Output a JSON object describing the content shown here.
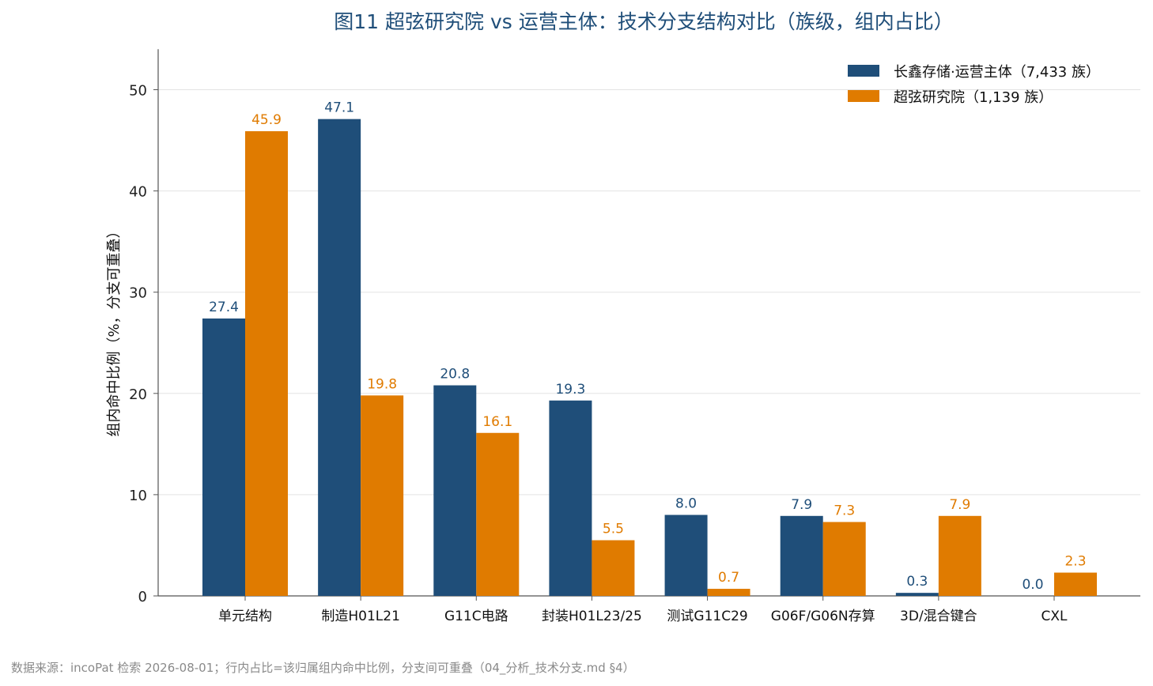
{
  "chart_data": {
    "type": "bar",
    "title": "图11  超弦研究院 vs 运营主体：技术分支结构对比（族级，组内占比）",
    "ylabel": "组内命中比例（%，分支可重叠）",
    "xlabel": "",
    "ylim": [
      0,
      54
    ],
    "yticks": [
      0,
      10,
      20,
      30,
      40,
      50
    ],
    "grid": true,
    "legend_position": "top-right",
    "categories": [
      "单元结构",
      "制造H01L21",
      "G11C电路",
      "封装H01L23/25",
      "测试G11C29",
      "G06F/G06N存算",
      "3D/混合键合",
      "CXL"
    ],
    "series": [
      {
        "name": "长鑫存储·运营主体（7,433 族）",
        "color": "#1f4e79",
        "values": [
          27.4,
          47.1,
          20.8,
          19.3,
          8.0,
          7.9,
          0.3,
          0.0
        ],
        "labels": [
          "27.4",
          "47.1",
          "20.8",
          "19.3",
          "8.0",
          "7.9",
          "0.3",
          "0.0"
        ]
      },
      {
        "name": "超弦研究院（1,139 族）",
        "color": "#e07b00",
        "values": [
          45.9,
          19.8,
          16.1,
          5.5,
          0.7,
          7.3,
          7.9,
          2.3
        ],
        "labels": [
          "45.9",
          "19.8",
          "16.1",
          "5.5",
          "0.7",
          "7.3",
          "7.9",
          "2.3"
        ]
      }
    ]
  },
  "source_note": "数据来源：incoPat 检索 2026-08-01；行内占比=该归属组内命中比例，分支间可重叠（04_分析_技术分支.md §4）"
}
